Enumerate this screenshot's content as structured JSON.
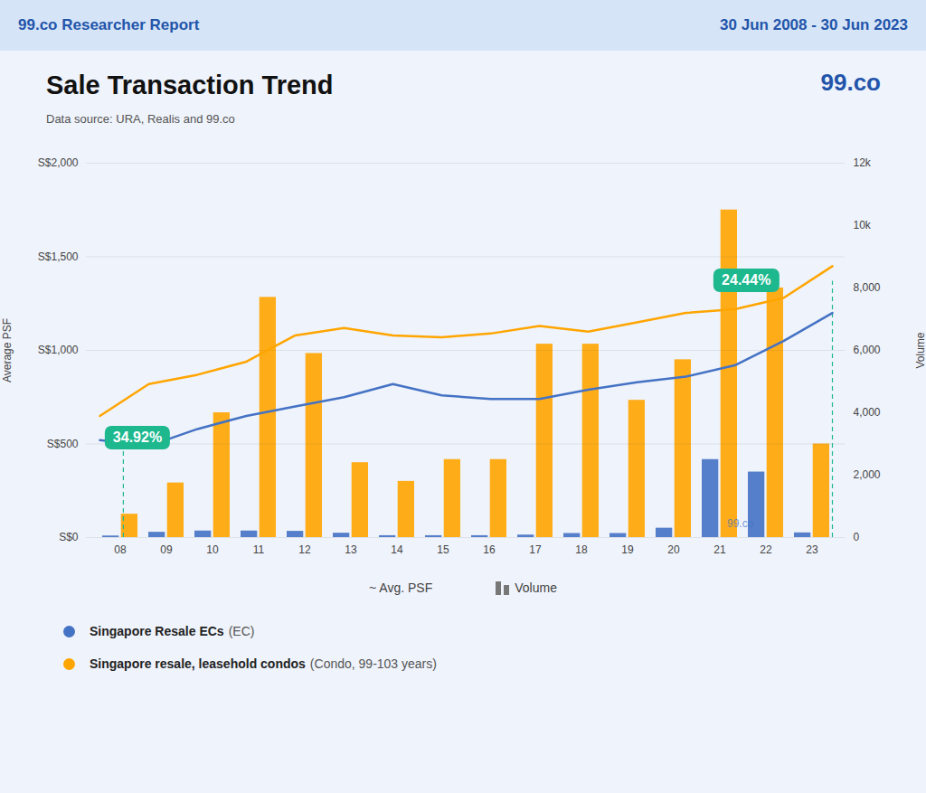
{
  "chart_data": {
    "type": "bar",
    "title": "Sale Transaction Trend",
    "subtitle": "Data source: URA, Realis and 99.co",
    "header_left": "99.co Researcher Report",
    "header_right": "30 Jun 2008 - 30 Jun 2023",
    "logo": "99.co",
    "watermark": "99.co",
    "categories": [
      "08",
      "09",
      "10",
      "11",
      "12",
      "13",
      "14",
      "15",
      "16",
      "17",
      "18",
      "19",
      "20",
      "21",
      "22",
      "23"
    ],
    "series": [
      {
        "name": "Singapore Resale ECs",
        "type": "bar",
        "axis": "y2",
        "color": "#4472C4",
        "values": [
          50,
          170,
          210,
          210,
          200,
          140,
          60,
          60,
          60,
          80,
          130,
          130,
          300,
          2500,
          2100,
          150
        ]
      },
      {
        "name": "Singapore resale, leasehold condos",
        "type": "bar",
        "axis": "y2",
        "color": "#FFA500",
        "values": [
          750,
          1750,
          4000,
          7700,
          5900,
          2400,
          1800,
          2500,
          2500,
          6200,
          6200,
          4400,
          5700,
          10500,
          8000,
          3000
        ]
      },
      {
        "name": "Singapore Resale ECs",
        "type": "line",
        "color": "#4472C4",
        "values": [
          520,
          490,
          580,
          650,
          700,
          750,
          820,
          760,
          740,
          740,
          790,
          830,
          860,
          920,
          1050,
          1200
        ]
      },
      {
        "name": "Singapore resale, leasehold condos",
        "type": "line",
        "color": "#FFA500",
        "values": [
          650,
          820,
          870,
          940,
          1080,
          1120,
          1080,
          1070,
          1090,
          1130,
          1100,
          1150,
          1200,
          1220,
          1280,
          1450
        ]
      }
    ],
    "ylabel": "Average PSF",
    "ylim": [
      0,
      2000
    ],
    "yticks": [
      {
        "value": 0,
        "label": "S$0"
      },
      {
        "value": 500,
        "label": "S$500"
      },
      {
        "value": 1000,
        "label": "S$1,000"
      },
      {
        "value": 1500,
        "label": "S$1,500"
      },
      {
        "value": 2000,
        "label": "S$2,000"
      }
    ],
    "y2label": "Volume",
    "y2lim": [
      0,
      12000
    ],
    "y2ticks": [
      0,
      {
        "value": 2000,
        "label": "2,000"
      },
      {
        "value": 4000,
        "label": "4,000"
      },
      {
        "value": 6000,
        "label": "6,000"
      },
      {
        "value": 8000,
        "label": "8,000"
      },
      {
        "value": 10000,
        "label": "10k"
      },
      {
        "value": 12000,
        "label": "12k"
      }
    ],
    "grid": true,
    "annotations": [
      {
        "text": "34.92%",
        "y": 530
      },
      {
        "text": "24.44%",
        "y": 1370
      }
    ],
    "key_labels": [
      "~ Avg. PSF",
      "Volume"
    ],
    "legend": "bottom",
    "legend_entries": [
      {
        "name": "Singapore Resale ECs",
        "detail": "(EC)"
      },
      {
        "name": "Singapore resale, leasehold condos",
        "detail": "(Condo, 99-103 years)"
      }
    ]
  }
}
